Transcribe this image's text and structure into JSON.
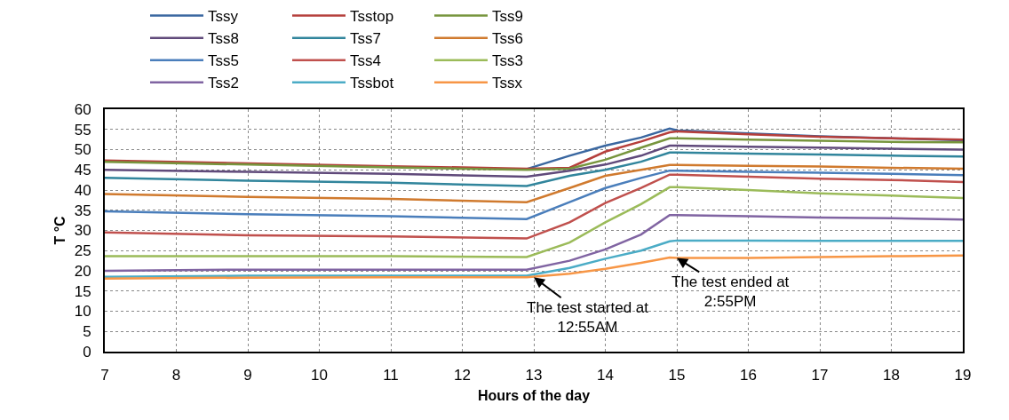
{
  "chart_data": {
    "type": "line",
    "xlabel": "Hours of the day",
    "ylabel": "T °C",
    "x": [
      7,
      9,
      11,
      12.9,
      13.5,
      14,
      14.5,
      14.9,
      15,
      16,
      17,
      18,
      19
    ],
    "xlim": [
      7,
      19
    ],
    "xticks": [
      7,
      8,
      9,
      10,
      11,
      12,
      13,
      14,
      15,
      16,
      17,
      18,
      19
    ],
    "ylim": [
      0,
      60
    ],
    "yticks": [
      0,
      5,
      10,
      15,
      20,
      25,
      30,
      35,
      40,
      45,
      50,
      55,
      60
    ],
    "grid": true,
    "legend": "top",
    "marker": "none",
    "line_style": "solid",
    "series": [
      {
        "name": "Tssy",
        "color": "#3a67a0",
        "values": [
          null,
          null,
          null,
          45.2,
          48.5,
          51,
          53,
          55.2,
          54.8,
          54,
          53.3,
          52.8,
          52.3
        ]
      },
      {
        "name": "Tsstop",
        "color": "#b53f3c",
        "values": [
          47.3,
          46.6,
          45.9,
          45.3,
          45.5,
          49.5,
          52,
          54.3,
          54.5,
          53.8,
          53.2,
          52.8,
          52.5
        ]
      },
      {
        "name": "Tss9",
        "color": "#77953d",
        "values": [
          47,
          46.3,
          45.6,
          45,
          45.3,
          47.5,
          50.5,
          52.8,
          52.8,
          52.5,
          52.2,
          51.9,
          51.8
        ]
      },
      {
        "name": "Tss8",
        "color": "#604a7b",
        "values": [
          45,
          44.5,
          44,
          43.3,
          44.8,
          46.3,
          48.5,
          51,
          51,
          50.7,
          50.5,
          50.2,
          50
        ]
      },
      {
        "name": "Tss7",
        "color": "#31859c",
        "values": [
          43,
          42.3,
          41.8,
          41,
          43.5,
          45,
          47,
          49.3,
          49.3,
          49,
          48.8,
          48.5,
          48.3
        ]
      },
      {
        "name": "Tss6",
        "color": "#d07a2e",
        "values": [
          39,
          38.3,
          37.8,
          37,
          40.5,
          43.5,
          45,
          46.2,
          46.2,
          46,
          45.8,
          45.5,
          45.3
        ]
      },
      {
        "name": "Tss5",
        "color": "#4a7ebb",
        "values": [
          34.7,
          34,
          33.5,
          32.8,
          37,
          40.5,
          43,
          44.8,
          44.8,
          44.5,
          44.3,
          44,
          43.7
        ]
      },
      {
        "name": "Tss4",
        "color": "#c0504d",
        "values": [
          29.5,
          28.8,
          28.5,
          28,
          32,
          36.8,
          40.5,
          43.8,
          43.8,
          43.3,
          42.8,
          42.5,
          42
        ]
      },
      {
        "name": "Tss3",
        "color": "#9bbb59",
        "values": [
          23.6,
          23.6,
          23.6,
          23.4,
          27,
          32,
          36.5,
          40.7,
          40.7,
          40,
          39.2,
          38.6,
          38
        ]
      },
      {
        "name": "Tss2",
        "color": "#8064a2",
        "values": [
          20,
          20.3,
          20.3,
          20.3,
          22.5,
          25.3,
          29,
          33.8,
          33.8,
          33.5,
          33.2,
          33,
          32.7
        ]
      },
      {
        "name": "Tssbot",
        "color": "#4bacc6",
        "values": [
          18.5,
          18.8,
          18.8,
          18.8,
          20.7,
          23,
          25,
          27.3,
          27.5,
          27.5,
          27.4,
          27.4,
          27.4
        ]
      },
      {
        "name": "Tssx",
        "color": "#f79646",
        "values": [
          18.1,
          18.3,
          18.4,
          18.4,
          19.3,
          20.5,
          22,
          23.3,
          23.2,
          23.2,
          23.4,
          23.6,
          23.8
        ]
      }
    ],
    "annotations": [
      {
        "text": "The test started at\n12:55AM",
        "x": 13,
        "y": 18.4
      },
      {
        "text": "The test ended at\n2:55PM",
        "x": 15,
        "y": 23.2
      }
    ]
  }
}
